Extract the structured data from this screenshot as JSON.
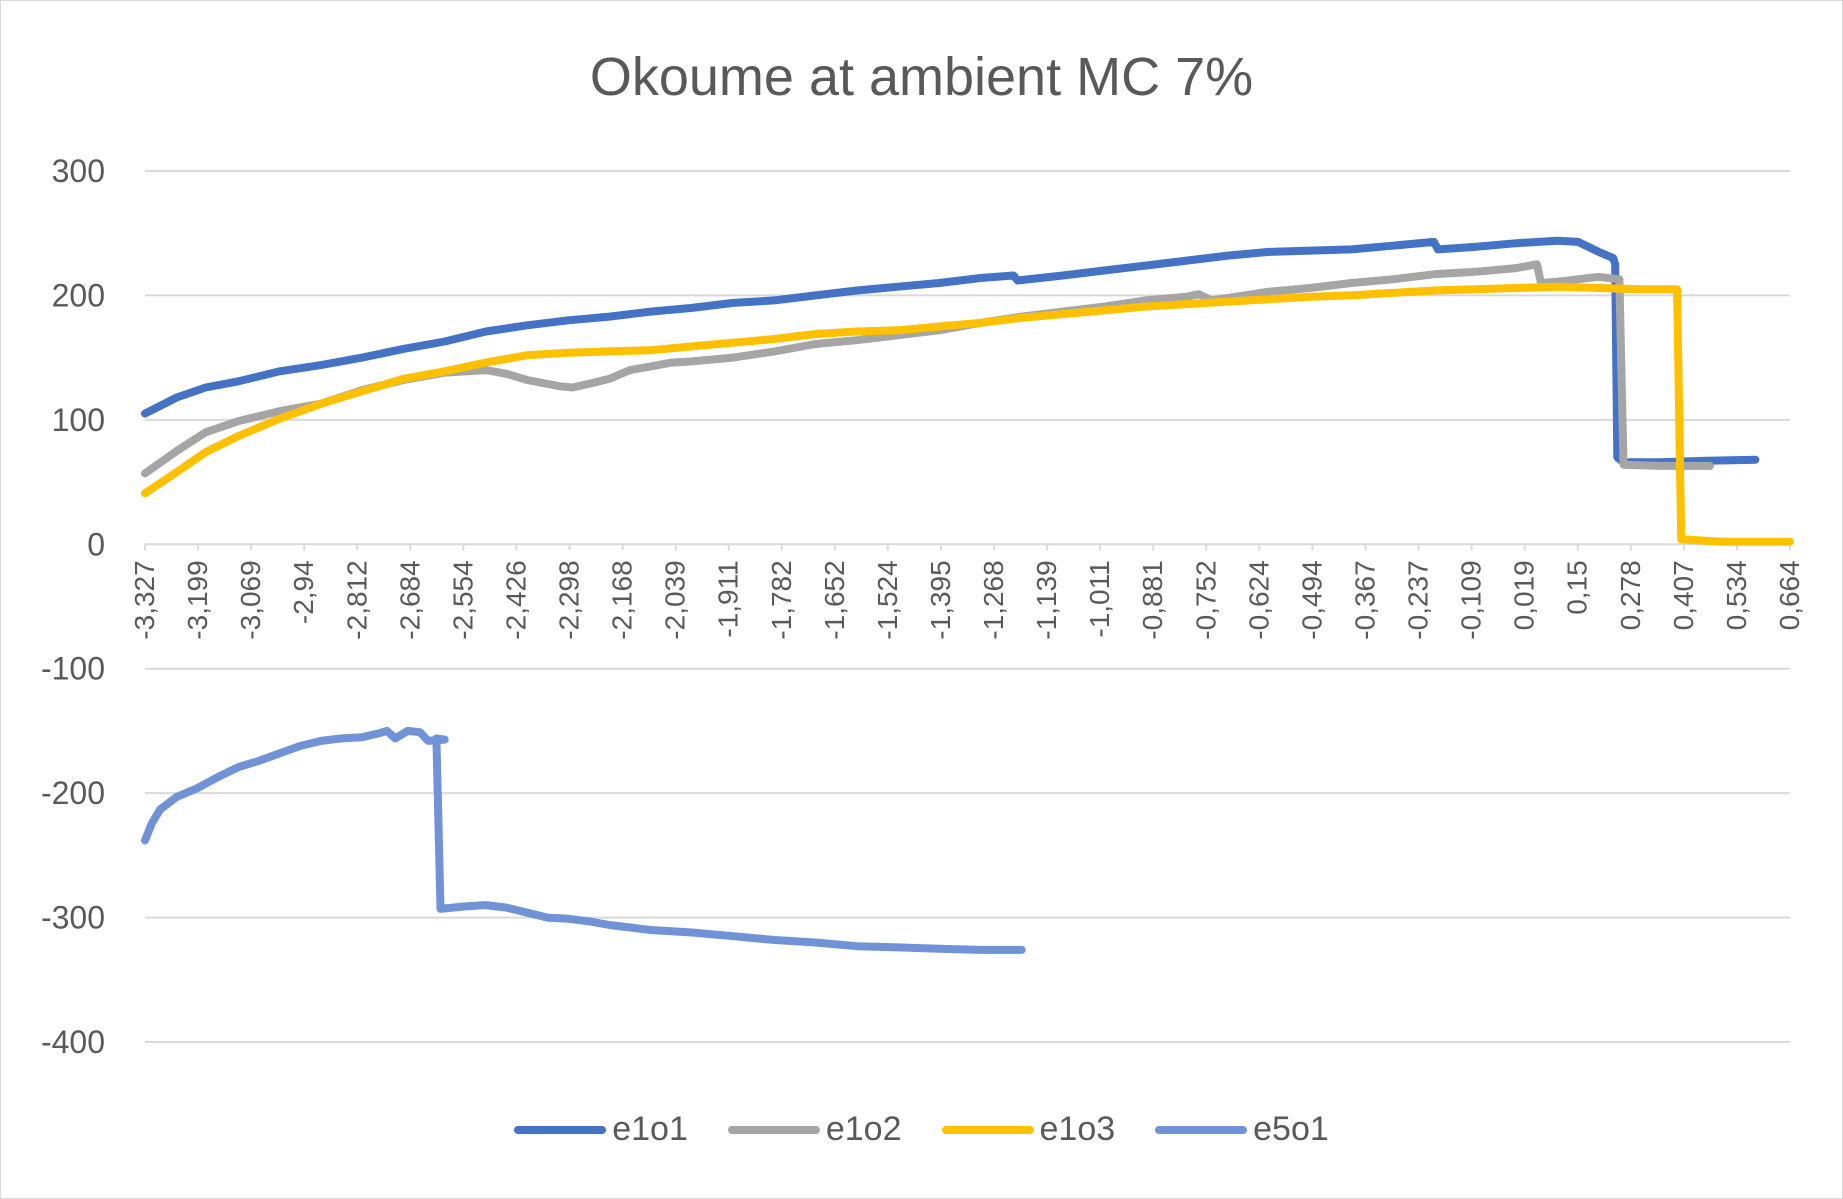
{
  "chart_data": {
    "type": "line",
    "title": "Okoume at ambient MC 7%",
    "xlabel": "",
    "ylabel": "",
    "ylim": [
      -400,
      300
    ],
    "y_ticks": [
      "300",
      "200",
      "100",
      "0",
      "-100",
      "-200",
      "-300",
      "-400"
    ],
    "x_range": [
      -3.327,
      0.664
    ],
    "x_ticks": [
      "-3,327",
      "-3,199",
      "-3,069",
      "-2,94",
      "-2,812",
      "-2,684",
      "-2,554",
      "-2,426",
      "-2,298",
      "-2,168",
      "-2,039",
      "-1,911",
      "-1,782",
      "-1,652",
      "-1,524",
      "-1,395",
      "-1,268",
      "-1,139",
      "-1,011",
      "-0,881",
      "-0,752",
      "-0,624",
      "-0,494",
      "-0,367",
      "-0,237",
      "-0,109",
      "0,019",
      "0,15",
      "0,278",
      "0,407",
      "0,534",
      "0,664"
    ],
    "grid": true,
    "legend_position": "bottom",
    "series": [
      {
        "name": "e1o1",
        "color": "#4472c4",
        "points": [
          [
            -3.327,
            105
          ],
          [
            -3.25,
            118
          ],
          [
            -3.18,
            126
          ],
          [
            -3.1,
            131
          ],
          [
            -3.0,
            139
          ],
          [
            -2.9,
            144
          ],
          [
            -2.8,
            150
          ],
          [
            -2.7,
            157
          ],
          [
            -2.6,
            163
          ],
          [
            -2.5,
            171
          ],
          [
            -2.4,
            176
          ],
          [
            -2.3,
            180
          ],
          [
            -2.2,
            183
          ],
          [
            -2.1,
            187
          ],
          [
            -2.0,
            190
          ],
          [
            -1.9,
            194
          ],
          [
            -1.8,
            196
          ],
          [
            -1.7,
            200
          ],
          [
            -1.6,
            204
          ],
          [
            -1.5,
            207
          ],
          [
            -1.4,
            210
          ],
          [
            -1.3,
            214
          ],
          [
            -1.22,
            216
          ],
          [
            -1.21,
            212
          ],
          [
            -1.1,
            216
          ],
          [
            -1.0,
            220
          ],
          [
            -0.9,
            224
          ],
          [
            -0.8,
            228
          ],
          [
            -0.7,
            232
          ],
          [
            -0.6,
            235
          ],
          [
            -0.5,
            236
          ],
          [
            -0.4,
            237
          ],
          [
            -0.3,
            240
          ],
          [
            -0.2,
            243
          ],
          [
            -0.19,
            237
          ],
          [
            -0.1,
            239
          ],
          [
            0.0,
            242
          ],
          [
            0.1,
            244
          ],
          [
            0.15,
            243
          ],
          [
            0.2,
            235
          ],
          [
            0.235,
            230
          ],
          [
            0.24,
            225
          ],
          [
            0.245,
            70
          ],
          [
            0.26,
            66
          ],
          [
            0.35,
            66
          ],
          [
            0.45,
            67
          ],
          [
            0.58,
            68
          ]
        ]
      },
      {
        "name": "e1o2",
        "color": "#a5a5a5",
        "points": [
          [
            -3.327,
            57
          ],
          [
            -3.25,
            75
          ],
          [
            -3.18,
            90
          ],
          [
            -3.1,
            99
          ],
          [
            -3.0,
            107
          ],
          [
            -2.9,
            113
          ],
          [
            -2.8,
            124
          ],
          [
            -2.7,
            132
          ],
          [
            -2.6,
            138
          ],
          [
            -2.5,
            140
          ],
          [
            -2.45,
            137
          ],
          [
            -2.4,
            132
          ],
          [
            -2.32,
            127
          ],
          [
            -2.29,
            126
          ],
          [
            -2.25,
            129
          ],
          [
            -2.2,
            133
          ],
          [
            -2.15,
            140
          ],
          [
            -2.1,
            143
          ],
          [
            -2.05,
            146
          ],
          [
            -2.0,
            147
          ],
          [
            -1.9,
            150
          ],
          [
            -1.8,
            155
          ],
          [
            -1.7,
            161
          ],
          [
            -1.6,
            164
          ],
          [
            -1.5,
            168
          ],
          [
            -1.4,
            172
          ],
          [
            -1.3,
            178
          ],
          [
            -1.2,
            183
          ],
          [
            -1.1,
            187
          ],
          [
            -1.0,
            191
          ],
          [
            -0.9,
            196
          ],
          [
            -0.8,
            199
          ],
          [
            -0.77,
            201
          ],
          [
            -0.74,
            196
          ],
          [
            -0.7,
            198
          ],
          [
            -0.6,
            203
          ],
          [
            -0.5,
            206
          ],
          [
            -0.4,
            210
          ],
          [
            -0.3,
            213
          ],
          [
            -0.2,
            217
          ],
          [
            -0.1,
            219
          ],
          [
            0.0,
            222
          ],
          [
            0.05,
            225
          ],
          [
            0.06,
            210
          ],
          [
            0.1,
            211
          ],
          [
            0.2,
            215
          ],
          [
            0.25,
            213
          ],
          [
            0.26,
            64
          ],
          [
            0.35,
            63
          ],
          [
            0.47,
            63
          ]
        ]
      },
      {
        "name": "e1o3",
        "color": "#ffc000",
        "points": [
          [
            -3.327,
            41
          ],
          [
            -3.25,
            58
          ],
          [
            -3.18,
            74
          ],
          [
            -3.1,
            87
          ],
          [
            -3.0,
            101
          ],
          [
            -2.9,
            113
          ],
          [
            -2.8,
            123
          ],
          [
            -2.7,
            133
          ],
          [
            -2.6,
            139
          ],
          [
            -2.5,
            146
          ],
          [
            -2.4,
            152
          ],
          [
            -2.3,
            154
          ],
          [
            -2.2,
            155
          ],
          [
            -2.1,
            156
          ],
          [
            -2.0,
            159
          ],
          [
            -1.9,
            162
          ],
          [
            -1.8,
            165
          ],
          [
            -1.7,
            169
          ],
          [
            -1.6,
            171
          ],
          [
            -1.5,
            172
          ],
          [
            -1.4,
            175
          ],
          [
            -1.3,
            178
          ],
          [
            -1.2,
            182
          ],
          [
            -1.1,
            185
          ],
          [
            -1.0,
            188
          ],
          [
            -0.9,
            191
          ],
          [
            -0.8,
            193
          ],
          [
            -0.7,
            195
          ],
          [
            -0.6,
            197
          ],
          [
            -0.5,
            199
          ],
          [
            -0.4,
            200
          ],
          [
            -0.3,
            202
          ],
          [
            -0.2,
            204
          ],
          [
            -0.1,
            205
          ],
          [
            0.0,
            206
          ],
          [
            0.1,
            207
          ],
          [
            0.2,
            206
          ],
          [
            0.3,
            205
          ],
          [
            0.39,
            205
          ],
          [
            0.4,
            4
          ],
          [
            0.5,
            2
          ],
          [
            0.664,
            2
          ]
        ]
      },
      {
        "name": "e5o1",
        "color": "#6f93d6",
        "points": [
          [
            -3.327,
            -238
          ],
          [
            -3.31,
            -224
          ],
          [
            -3.29,
            -213
          ],
          [
            -3.25,
            -203
          ],
          [
            -3.2,
            -196
          ],
          [
            -3.15,
            -187
          ],
          [
            -3.1,
            -179
          ],
          [
            -3.05,
            -174
          ],
          [
            -3.0,
            -168
          ],
          [
            -2.95,
            -162
          ],
          [
            -2.9,
            -158
          ],
          [
            -2.85,
            -156
          ],
          [
            -2.8,
            -155
          ],
          [
            -2.76,
            -152
          ],
          [
            -2.74,
            -150
          ],
          [
            -2.72,
            -156
          ],
          [
            -2.69,
            -150
          ],
          [
            -2.66,
            -151
          ],
          [
            -2.64,
            -158
          ],
          [
            -2.6,
            -157
          ],
          [
            -2.62,
            -156
          ],
          [
            -2.61,
            -293
          ],
          [
            -2.55,
            -291
          ],
          [
            -2.5,
            -290
          ],
          [
            -2.45,
            -292
          ],
          [
            -2.4,
            -296
          ],
          [
            -2.35,
            -300
          ],
          [
            -2.3,
            -301
          ],
          [
            -2.25,
            -303
          ],
          [
            -2.2,
            -306
          ],
          [
            -2.1,
            -310
          ],
          [
            -2.0,
            -312
          ],
          [
            -1.9,
            -315
          ],
          [
            -1.8,
            -318
          ],
          [
            -1.7,
            -320
          ],
          [
            -1.6,
            -323
          ],
          [
            -1.5,
            -324
          ],
          [
            -1.4,
            -325
          ],
          [
            -1.3,
            -326
          ],
          [
            -1.2,
            -326
          ]
        ]
      }
    ]
  }
}
